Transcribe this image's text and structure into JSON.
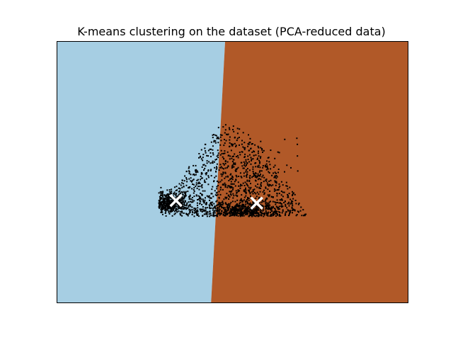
{
  "chart_data": {
    "type": "scatter",
    "title": "K-means clustering on the dataset (PCA-reduced data)",
    "xlabel": "",
    "ylabel": "",
    "ticks": "none",
    "grid": false,
    "xlim": [
      0,
      100
    ],
    "ylim": [
      0,
      100
    ],
    "decision_regions": [
      {
        "cluster": 0,
        "color": "#a6cee3",
        "boundary": [
          [
            48,
            100
          ],
          [
            44,
            0
          ]
        ]
      },
      {
        "cluster": 1,
        "color": "#b15928"
      }
    ],
    "centroids": [
      {
        "cluster": 0,
        "x": 34,
        "y": 39,
        "marker": "x",
        "color": "#ffffff"
      },
      {
        "cluster": 1,
        "x": 57,
        "y": 38,
        "marker": "x",
        "color": "#ffffff"
      }
    ],
    "point_color": "#000000",
    "point_cloud": {
      "approx_count": 2200,
      "apex": [
        47.5,
        69
      ],
      "base_y": 34,
      "base_x": [
        29.5,
        71
      ],
      "dense_center_0": [
        32,
        38
      ],
      "dense_center_1": [
        54,
        35
      ]
    }
  }
}
